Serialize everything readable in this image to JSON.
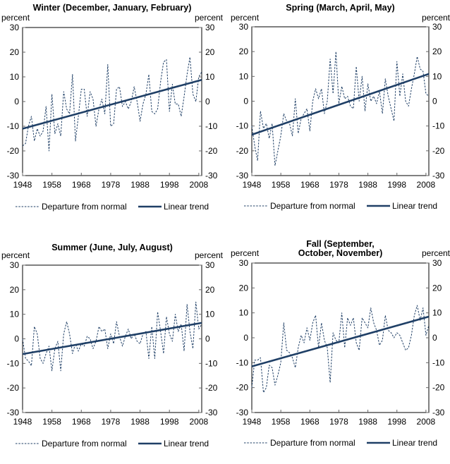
{
  "colors": {
    "line": "#1f3f66",
    "frame": "#000000",
    "tickmark": "#666666"
  },
  "chart_data": [
    {
      "type": "line",
      "title": [
        "Winter (December, January, February)"
      ],
      "ylabel_left": "percent",
      "ylabel_right": "percent",
      "ylim": [
        -30,
        30
      ],
      "yticks": [
        30,
        20,
        10,
        0,
        -10,
        -20,
        -30
      ],
      "xlim": [
        1948,
        2009
      ],
      "xticks": [
        1948,
        1958,
        1968,
        1978,
        1988,
        1998,
        2008
      ],
      "grid": false,
      "legend_position": "bottom",
      "series": [
        {
          "name": "Departure from normal",
          "style": "dashed",
          "x": [
            1948,
            1949,
            1950,
            1951,
            1952,
            1953,
            1954,
            1955,
            1956,
            1957,
            1958,
            1959,
            1960,
            1961,
            1962,
            1963,
            1964,
            1965,
            1966,
            1967,
            1968,
            1969,
            1970,
            1971,
            1972,
            1973,
            1974,
            1975,
            1976,
            1977,
            1978,
            1979,
            1980,
            1981,
            1982,
            1983,
            1984,
            1985,
            1986,
            1987,
            1988,
            1989,
            1990,
            1991,
            1992,
            1993,
            1994,
            1995,
            1996,
            1997,
            1998,
            1999,
            2000,
            2001,
            2002,
            2003,
            2004,
            2005,
            2006,
            2007,
            2008,
            2009
          ],
          "y": [
            -18,
            -17,
            -10,
            -6,
            -16,
            -11,
            -14,
            -12,
            -2,
            -20,
            3,
            -13,
            -9,
            -14,
            4,
            -3,
            -5,
            11,
            -16,
            -6,
            5,
            5,
            -6,
            4,
            1,
            -10,
            -3,
            1,
            -5,
            15,
            -10,
            -9,
            5,
            6,
            -2,
            0,
            -3,
            0,
            6,
            0,
            -8,
            -1,
            3,
            11,
            -4,
            -5,
            -3,
            8,
            16,
            17,
            -4,
            7,
            -1,
            -1,
            -6,
            2,
            11,
            18,
            3,
            0,
            10,
            12
          ]
        },
        {
          "name": "Linear trend",
          "style": "solid",
          "x": [
            1948,
            2009
          ],
          "y": [
            -11,
            8.8
          ]
        }
      ]
    },
    {
      "type": "line",
      "title": [
        "Spring (March, April, May)"
      ],
      "ylabel_left": "percent",
      "ylabel_right": "percent",
      "ylim": [
        -30,
        30
      ],
      "yticks": [
        30,
        20,
        10,
        0,
        -10,
        -20,
        -30
      ],
      "xlim": [
        1948,
        2009
      ],
      "xticks": [
        1948,
        1958,
        1968,
        1978,
        1988,
        1998,
        2008
      ],
      "grid": false,
      "legend_position": "bottom",
      "series": [
        {
          "name": "Departure from normal",
          "style": "dashed",
          "x": [
            1948,
            1949,
            1950,
            1951,
            1952,
            1953,
            1954,
            1955,
            1956,
            1957,
            1958,
            1959,
            1960,
            1961,
            1962,
            1963,
            1964,
            1965,
            1966,
            1967,
            1968,
            1969,
            1970,
            1971,
            1972,
            1973,
            1974,
            1975,
            1976,
            1977,
            1978,
            1979,
            1980,
            1981,
            1982,
            1983,
            1984,
            1985,
            1986,
            1987,
            1988,
            1989,
            1990,
            1991,
            1992,
            1993,
            1994,
            1995,
            1996,
            1997,
            1998,
            1999,
            2000,
            2001,
            2002,
            2003,
            2004,
            2005,
            2006,
            2007,
            2008,
            2009
          ],
          "y": [
            -10,
            -18,
            -24,
            -4,
            -11,
            -9,
            -15,
            -9,
            -26,
            -20,
            -14,
            -5,
            -8,
            -9,
            -14,
            1,
            -13,
            -7,
            -5,
            -3,
            -12,
            0,
            5,
            1,
            5,
            -5,
            0,
            17,
            3,
            20,
            -1,
            6,
            1,
            2,
            -2,
            -3,
            14,
            0,
            10,
            -4,
            7,
            0,
            2,
            -1,
            4,
            -5,
            9,
            2,
            -3,
            -8,
            16,
            2,
            11,
            0,
            -2,
            5,
            11,
            18,
            13,
            12,
            3,
            2
          ]
        },
        {
          "name": "Linear trend",
          "style": "solid",
          "x": [
            1948,
            2009
          ],
          "y": [
            -13.5,
            11
          ]
        }
      ]
    },
    {
      "type": "line",
      "title": [
        "Summer (June, July, August)"
      ],
      "ylabel_left": "percent",
      "ylabel_right": "percent",
      "ylim": [
        -30,
        30
      ],
      "yticks": [
        30,
        20,
        10,
        0,
        -10,
        -20,
        -30
      ],
      "xlim": [
        1948,
        2009
      ],
      "xticks": [
        1948,
        1958,
        1968,
        1978,
        1988,
        1998,
        2008
      ],
      "grid": false,
      "legend_position": "bottom",
      "series": [
        {
          "name": "Departure from normal",
          "style": "dashed",
          "x": [
            1948,
            1949,
            1950,
            1951,
            1952,
            1953,
            1954,
            1955,
            1956,
            1957,
            1958,
            1959,
            1960,
            1961,
            1962,
            1963,
            1964,
            1965,
            1966,
            1967,
            1968,
            1969,
            1970,
            1971,
            1972,
            1973,
            1974,
            1975,
            1976,
            1977,
            1978,
            1979,
            1980,
            1981,
            1982,
            1983,
            1984,
            1985,
            1986,
            1987,
            1988,
            1989,
            1990,
            1991,
            1992,
            1993,
            1994,
            1995,
            1996,
            1997,
            1998,
            1999,
            2000,
            2001,
            2002,
            2003,
            2004,
            2005,
            2006,
            2007,
            2008,
            2009
          ],
          "y": [
            0,
            -8,
            -9,
            -11,
            5,
            2,
            -8,
            -10,
            -6,
            -3,
            -13,
            -4,
            -1,
            -13,
            2,
            7,
            2,
            -6,
            -2,
            -5,
            -2,
            -3,
            1,
            0,
            -4,
            -1,
            5,
            3,
            4,
            -4,
            2,
            -2,
            7,
            1,
            -3,
            1,
            4,
            0,
            2,
            -1,
            -2,
            2,
            3,
            -8,
            5,
            -8,
            11,
            3,
            -6,
            9,
            2,
            -1,
            10,
            3,
            6,
            -5,
            14,
            3,
            -4,
            15,
            4,
            6
          ]
        },
        {
          "name": "Linear trend",
          "style": "solid",
          "x": [
            1948,
            2009
          ],
          "y": [
            -6.2,
            6.5
          ]
        }
      ]
    },
    {
      "type": "line",
      "title": [
        "Fall (September,",
        "October, November)"
      ],
      "ylabel_left": "percent",
      "ylabel_right": "percent",
      "ylim": [
        -30,
        30
      ],
      "yticks": [
        30,
        20,
        10,
        0,
        -10,
        -20,
        -30
      ],
      "xlim": [
        1948,
        2009
      ],
      "xticks": [
        1948,
        1958,
        1968,
        1978,
        1988,
        1998,
        2008
      ],
      "grid": false,
      "legend_position": "bottom",
      "series": [
        {
          "name": "Departure from normal",
          "style": "dashed",
          "x": [
            1948,
            1949,
            1950,
            1951,
            1952,
            1953,
            1954,
            1955,
            1956,
            1957,
            1958,
            1959,
            1960,
            1961,
            1962,
            1963,
            1964,
            1965,
            1966,
            1967,
            1968,
            1969,
            1970,
            1971,
            1972,
            1973,
            1974,
            1975,
            1976,
            1977,
            1978,
            1979,
            1980,
            1981,
            1982,
            1983,
            1984,
            1985,
            1986,
            1987,
            1988,
            1989,
            1990,
            1991,
            1992,
            1993,
            1994,
            1995,
            1996,
            1997,
            1998,
            1999,
            2000,
            2001,
            2002,
            2003,
            2004,
            2005,
            2006,
            2007,
            2008,
            2009
          ],
          "y": [
            -20,
            -9,
            -9,
            -8,
            -22,
            -20,
            -11,
            -12,
            -19,
            -15,
            -10,
            6,
            -5,
            -6,
            -8,
            -12,
            -4,
            1,
            -2,
            4,
            -1,
            6,
            9,
            -4,
            6,
            -1,
            -4,
            -18,
            2,
            -1,
            -2,
            10,
            -4,
            8,
            5,
            8,
            -2,
            -5,
            8,
            6,
            4,
            12,
            6,
            3,
            -3,
            -1,
            9,
            3,
            2,
            0,
            2,
            1,
            -2,
            -5,
            -4,
            1,
            9,
            13,
            7,
            12,
            1,
            5
          ]
        },
        {
          "name": "Linear trend",
          "style": "solid",
          "x": [
            1948,
            2009
          ],
          "y": [
            -11.5,
            8.5
          ]
        }
      ]
    }
  ]
}
